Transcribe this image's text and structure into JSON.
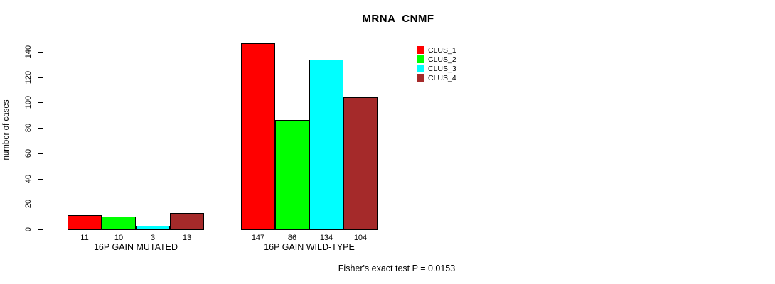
{
  "chart_data": {
    "type": "bar",
    "title": "MRNA_CNMF",
    "xlabel": "",
    "ylabel": "number of cases",
    "categories": [
      "16P GAIN MUTATED",
      "16P GAIN WILD-TYPE"
    ],
    "series": [
      {
        "name": "CLUS_1",
        "color": "#FF0000",
        "values": [
          11,
          147
        ]
      },
      {
        "name": "CLUS_2",
        "color": "#00FF00",
        "values": [
          10,
          86
        ]
      },
      {
        "name": "CLUS_3",
        "color": "#00FFFF",
        "values": [
          3,
          134
        ]
      },
      {
        "name": "CLUS_4",
        "color": "#A52A2A",
        "values": [
          13,
          104
        ]
      }
    ],
    "ylim": [
      0,
      140
    ],
    "yticks": [
      0,
      20,
      40,
      60,
      80,
      100,
      120,
      140
    ],
    "bar_value_labels": [
      [
        "11",
        "10",
        "3",
        "13"
      ],
      [
        "147",
        "86",
        "134",
        "104"
      ]
    ],
    "legend_position": "top-right",
    "grid": false
  },
  "footer": {
    "note": "Fisher's exact test P = 0.0153"
  }
}
